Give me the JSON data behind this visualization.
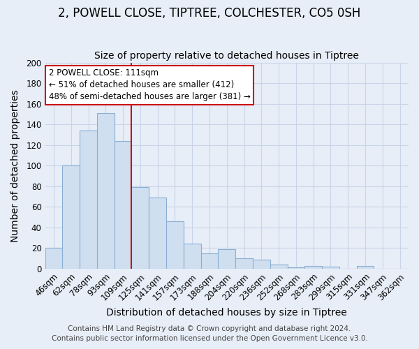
{
  "title": "2, POWELL CLOSE, TIPTREE, COLCHESTER, CO5 0SH",
  "subtitle": "Size of property relative to detached houses in Tiptree",
  "xlabel": "Distribution of detached houses by size in Tiptree",
  "ylabel": "Number of detached properties",
  "bar_labels": [
    "46sqm",
    "62sqm",
    "78sqm",
    "93sqm",
    "109sqm",
    "125sqm",
    "141sqm",
    "157sqm",
    "173sqm",
    "188sqm",
    "204sqm",
    "220sqm",
    "236sqm",
    "252sqm",
    "268sqm",
    "283sqm",
    "299sqm",
    "315sqm",
    "331sqm",
    "347sqm",
    "362sqm"
  ],
  "bar_values": [
    20,
    100,
    134,
    151,
    124,
    79,
    69,
    46,
    24,
    15,
    19,
    10,
    9,
    4,
    1,
    3,
    2,
    0,
    3,
    0,
    0
  ],
  "bar_color": "#cfdff0",
  "bar_edge_color": "#8aafd4",
  "vline_x_index": 4,
  "vline_color": "#cc0000",
  "ylim": [
    0,
    200
  ],
  "yticks": [
    0,
    20,
    40,
    60,
    80,
    100,
    120,
    140,
    160,
    180,
    200
  ],
  "annotation_text": "2 POWELL CLOSE: 111sqm\n← 51% of detached houses are smaller (412)\n48% of semi-detached houses are larger (381) →",
  "annotation_box_color": "#ffffff",
  "annotation_box_edge": "#cc0000",
  "footer_line1": "Contains HM Land Registry data © Crown copyright and database right 2024.",
  "footer_line2": "Contains public sector information licensed under the Open Government Licence v3.0.",
  "background_color": "#e8eef7",
  "grid_color": "#c8d4e8",
  "title_fontsize": 12,
  "subtitle_fontsize": 10,
  "axis_label_fontsize": 10,
  "tick_fontsize": 8.5,
  "annotation_fontsize": 8.5,
  "footer_fontsize": 7.5
}
